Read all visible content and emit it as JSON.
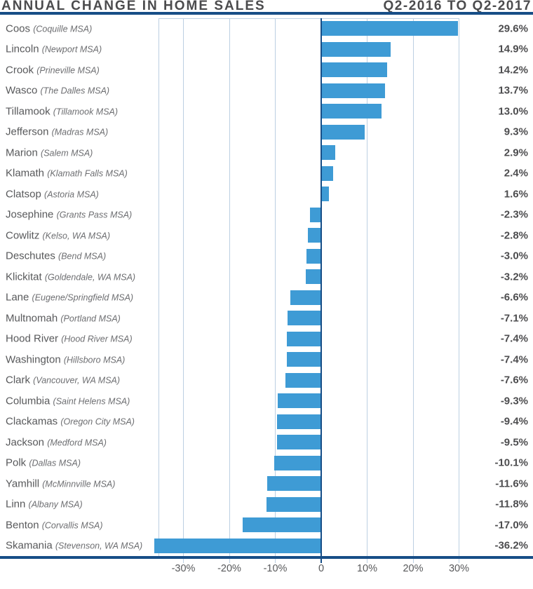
{
  "header": {
    "title": "ANNUAL CHANGE IN HOME SALES",
    "period": "Q2-2016 TO Q2-2017"
  },
  "colors": {
    "bar": "#3E9BD5",
    "rule": "#174E87",
    "zero_line": "#174E87",
    "gridline": "#BCCFE2",
    "title_text": "#4B4B4D",
    "county_text": "#58595B",
    "msa_text": "#6D6E71",
    "value_text": "#4D4D4F",
    "axis_text": "#58595B"
  },
  "chart_data": {
    "type": "bar",
    "orientation": "horizontal",
    "title": "ANNUAL CHANGE IN HOME SALES",
    "subtitle": "Q2-2016 TO Q2-2017",
    "unit": "percent",
    "xlim": [
      -35.4,
      30
    ],
    "grid": true,
    "x_ticks": [
      {
        "value": -30,
        "label": "-30%"
      },
      {
        "value": -20,
        "label": "-20%"
      },
      {
        "value": -10,
        "label": "-10%"
      },
      {
        "value": 0,
        "label": "0"
      },
      {
        "value": 10,
        "label": "10%"
      },
      {
        "value": 20,
        "label": "20%"
      },
      {
        "value": 30,
        "label": "30%"
      }
    ],
    "rows": [
      {
        "county": "Coos",
        "msa": "(Coquille MSA)",
        "value": 29.6,
        "label": "29.6%"
      },
      {
        "county": "Lincoln",
        "msa": "(Newport MSA)",
        "value": 14.9,
        "label": "14.9%"
      },
      {
        "county": "Crook",
        "msa": "(Prineville MSA)",
        "value": 14.2,
        "label": "14.2%"
      },
      {
        "county": "Wasco",
        "msa": "(The Dalles MSA)",
        "value": 13.7,
        "label": "13.7%"
      },
      {
        "county": "Tillamook",
        "msa": "(Tillamook MSA)",
        "value": 13.0,
        "label": "13.0%"
      },
      {
        "county": "Jefferson",
        "msa": "(Madras MSA)",
        "value": 9.3,
        "label": "9.3%"
      },
      {
        "county": "Marion",
        "msa": "(Salem MSA)",
        "value": 2.9,
        "label": "2.9%"
      },
      {
        "county": "Klamath",
        "msa": "(Klamath Falls MSA)",
        "value": 2.4,
        "label": "2.4%"
      },
      {
        "county": "Clatsop",
        "msa": "(Astoria MSA)",
        "value": 1.6,
        "label": "1.6%"
      },
      {
        "county": "Josephine",
        "msa": "(Grants Pass MSA)",
        "value": -2.3,
        "label": "-2.3%"
      },
      {
        "county": "Cowlitz",
        "msa": "(Kelso, WA MSA)",
        "value": -2.8,
        "label": "-2.8%"
      },
      {
        "county": "Deschutes",
        "msa": "(Bend MSA)",
        "value": -3.0,
        "label": "-3.0%"
      },
      {
        "county": "Klickitat",
        "msa": "(Goldendale, WA MSA)",
        "value": -3.2,
        "label": "-3.2%"
      },
      {
        "county": "Lane",
        "msa": "(Eugene/Springfield MSA)",
        "value": -6.6,
        "label": "-6.6%"
      },
      {
        "county": "Multnomah",
        "msa": "(Portland MSA)",
        "value": -7.1,
        "label": "-7.1%"
      },
      {
        "county": "Hood River",
        "msa": "(Hood River MSA)",
        "value": -7.4,
        "label": "-7.4%"
      },
      {
        "county": "Washington",
        "msa": "(Hillsboro MSA)",
        "value": -7.4,
        "label": "-7.4%"
      },
      {
        "county": "Clark",
        "msa": "(Vancouver, WA MSA)",
        "value": -7.6,
        "label": "-7.6%"
      },
      {
        "county": "Columbia",
        "msa": "(Saint Helens MSA)",
        "value": -9.3,
        "label": "-9.3%"
      },
      {
        "county": "Clackamas",
        "msa": "(Oregon City MSA)",
        "value": -9.4,
        "label": "-9.4%"
      },
      {
        "county": "Jackson",
        "msa": "(Medford MSA)",
        "value": -9.5,
        "label": "-9.5%"
      },
      {
        "county": "Polk",
        "msa": "(Dallas MSA)",
        "value": -10.1,
        "label": "-10.1%"
      },
      {
        "county": "Yamhill",
        "msa": "(McMinnville MSA)",
        "value": -11.6,
        "label": "-11.6%"
      },
      {
        "county": "Linn",
        "msa": "(Albany MSA)",
        "value": -11.8,
        "label": "-11.8%"
      },
      {
        "county": "Benton",
        "msa": "(Corvallis MSA)",
        "value": -17.0,
        "label": "-17.0%"
      },
      {
        "county": "Skamania",
        "msa": "(Stevenson, WA MSA)",
        "value": -36.2,
        "label": "-36.2%"
      }
    ]
  }
}
